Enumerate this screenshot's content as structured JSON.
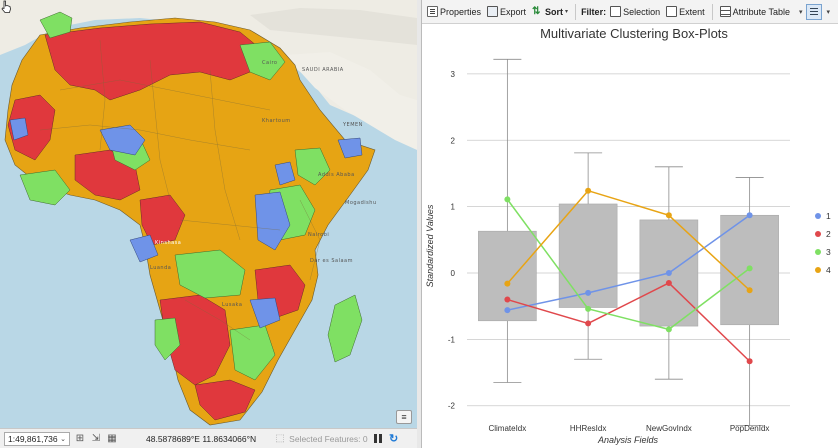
{
  "map": {
    "labels": [
      {
        "text": "SAUDI ARABIA",
        "style": ""
      },
      {
        "text": "YEMEN",
        "style": ""
      },
      {
        "text": "Khartoum",
        "style": ""
      },
      {
        "text": "Addis Ababa",
        "style": ""
      },
      {
        "text": "Nairobi",
        "style": ""
      },
      {
        "text": "Dar es Salaam",
        "style": ""
      },
      {
        "text": "Mogadishu",
        "style": ""
      },
      {
        "text": "Kinshasa",
        "style": "white"
      },
      {
        "text": "Luanda",
        "style": ""
      },
      {
        "text": "Lusaka",
        "style": ""
      },
      {
        "text": "Cairo",
        "style": ""
      }
    ],
    "corner_button_icon": "chat-icon"
  },
  "status_bar": {
    "scale": "1:49,861,736",
    "coordinates": "48.5878689°E 11.8634066°N",
    "selected_features": "Selected Features: 0"
  },
  "toolbar": {
    "properties": "Properties",
    "export": "Export",
    "sort": "Sort",
    "filter": "Filter:",
    "selection": "Selection",
    "extent": "Extent",
    "attribute_table": "Attribute Table"
  },
  "chart_data": {
    "type": "boxplot",
    "title": "Multivariate Clustering Box-Plots",
    "xlabel": "Analysis Fields",
    "ylabel": "Standardized Values",
    "ylim": [
      -2.2,
      3.3
    ],
    "yticks": [
      -2,
      -1,
      0,
      1,
      2,
      3
    ],
    "grid": true,
    "legend_position": "right",
    "categories": [
      "ClimateIdx",
      "HHResIdx",
      "NewGovIndx",
      "PopDenIdx"
    ],
    "boxes": [
      {
        "whisker_low": -1.65,
        "q1": -0.72,
        "q3": 0.63,
        "whisker_high": 3.22
      },
      {
        "whisker_low": -1.3,
        "q1": -0.52,
        "q3": 1.04,
        "whisker_high": 1.81
      },
      {
        "whisker_low": -1.6,
        "q1": -0.8,
        "q3": 0.8,
        "whisker_high": 1.6
      },
      {
        "whisker_low": -2.3,
        "q1": -0.78,
        "q3": 0.87,
        "whisker_high": 1.44
      }
    ],
    "series": [
      {
        "name": "1",
        "color": "#6f93e8",
        "values": [
          -0.56,
          -0.3,
          0.0,
          0.87
        ]
      },
      {
        "name": "2",
        "color": "#e0484c",
        "values": [
          -0.4,
          -0.76,
          -0.15,
          -1.33
        ]
      },
      {
        "name": "3",
        "color": "#7fe063",
        "values": [
          1.11,
          -0.54,
          -0.85,
          0.07
        ]
      },
      {
        "name": "4",
        "color": "#e8a414",
        "values": [
          -0.16,
          1.24,
          0.87,
          -0.26
        ]
      }
    ]
  }
}
